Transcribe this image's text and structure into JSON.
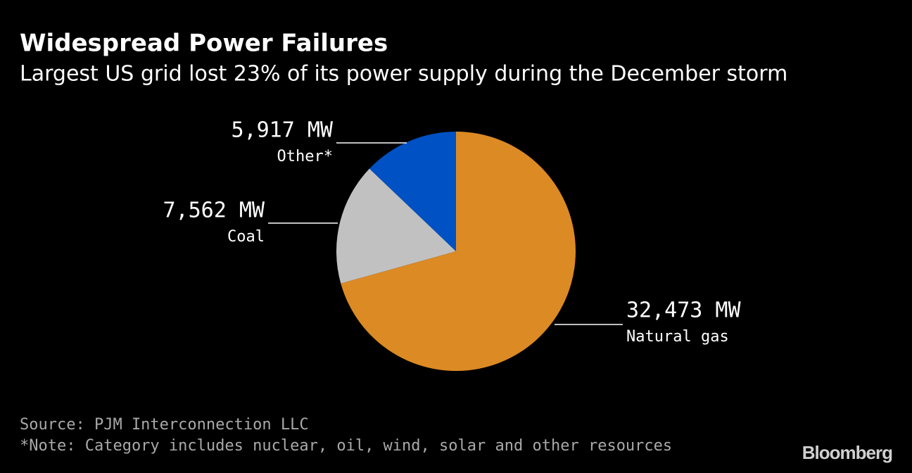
{
  "chart_data": {
    "type": "pie",
    "title": "Widespread Power Failures",
    "subtitle": "Largest US grid lost 23% of its power supply during the December storm",
    "categories": [
      "Natural gas",
      "Coal",
      "Other*"
    ],
    "values": [
      32473,
      7562,
      5917
    ],
    "value_labels": [
      "32,473 MW",
      "7,562 MW",
      "5,917 MW"
    ],
    "colors": [
      "#db8a24",
      "#c1c1c1",
      "#0051c4"
    ],
    "source": "Source: PJM Interconnection LLC",
    "note": "*Note: Category includes nuclear, oil, wind, solar and other resources",
    "logo": "Bloomberg"
  }
}
